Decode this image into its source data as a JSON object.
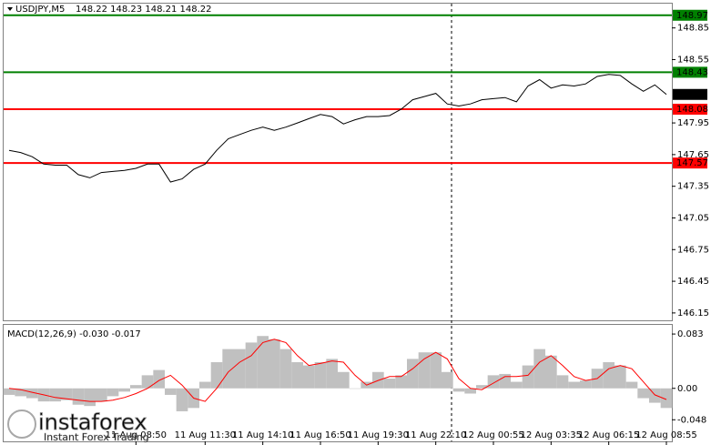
{
  "header": {
    "symbol": "USDJPY,M5",
    "quote": "148.22 148.23 148.21 148.22"
  },
  "chart_data": [
    {
      "type": "line",
      "color": "#000000",
      "categories": [
        null,
        null,
        null,
        null,
        null,
        null,
        null,
        null,
        null,
        null,
        null,
        "11 Aug 08:50",
        null,
        null,
        null,
        null,
        null,
        "11 Aug 11:30",
        null,
        null,
        null,
        null,
        "11 Aug 14:10",
        null,
        null,
        null,
        null,
        "11 Aug 16:50",
        null,
        null,
        null,
        null,
        "11 Aug 19:30",
        null,
        null,
        null,
        null,
        "11 Aug 22:10",
        null,
        null,
        null,
        null,
        "12 Aug 00:55",
        null,
        null,
        null,
        null,
        "12 Aug 03:35",
        null,
        null,
        null,
        null,
        "12 Aug 06:15",
        null,
        null,
        null,
        null,
        "12 Aug 08:55"
      ],
      "values": [
        147.69,
        147.67,
        147.63,
        147.56,
        147.55,
        147.55,
        147.46,
        147.43,
        147.48,
        147.49,
        147.5,
        147.52,
        147.56,
        147.56,
        147.39,
        147.42,
        147.51,
        147.56,
        147.69,
        147.8,
        147.84,
        147.88,
        147.91,
        147.88,
        147.91,
        147.95,
        147.99,
        148.03,
        148.01,
        147.94,
        147.98,
        148.01,
        148.01,
        148.02,
        148.08,
        148.17,
        148.2,
        148.23,
        148.13,
        148.11,
        148.13,
        148.17,
        148.18,
        148.19,
        148.15,
        148.3,
        148.36,
        148.28,
        148.31,
        148.3,
        148.32,
        148.39,
        148.41,
        148.4,
        148.32,
        148.25,
        148.31,
        148.22
      ],
      "ylim": [
        146.08,
        149.08
      ],
      "yticks": [
        148.85,
        148.55,
        147.95,
        147.65,
        147.35,
        147.05,
        146.75,
        146.45,
        146.15
      ],
      "levels": [
        {
          "value": 148.97,
          "color": "#008000"
        },
        {
          "value": 148.43,
          "color": "#008000"
        },
        {
          "value": 148.08,
          "color": "#ff0000"
        },
        {
          "value": 147.57,
          "color": "#ff0000"
        }
      ],
      "current_price": 148.22
    },
    {
      "type": "macd",
      "title": "MACD(12,26,9) -0.030 -0.017",
      "histogram": {
        "color": "#c0c0c0",
        "values": [
          -0.01,
          -0.012,
          -0.015,
          -0.02,
          -0.02,
          -0.018,
          -0.025,
          -0.027,
          -0.02,
          -0.012,
          -0.005,
          0.005,
          0.02,
          0.028,
          -0.01,
          -0.035,
          -0.03,
          0.01,
          0.04,
          0.06,
          0.06,
          0.07,
          0.08,
          0.075,
          0.06,
          0.04,
          0.035,
          0.04,
          0.045,
          0.025,
          0.0,
          0.01,
          0.025,
          0.015,
          0.02,
          0.045,
          0.055,
          0.055,
          0.025,
          -0.005,
          -0.008,
          0.005,
          0.02,
          0.022,
          0.01,
          0.035,
          0.06,
          0.05,
          0.02,
          0.01,
          0.012,
          0.03,
          0.04,
          0.035,
          0.01,
          -0.015,
          -0.022,
          -0.03
        ]
      },
      "signal": {
        "color": "#ff0000",
        "values": [
          0.0,
          -0.002,
          -0.006,
          -0.01,
          -0.014,
          -0.016,
          -0.018,
          -0.02,
          -0.02,
          -0.018,
          -0.014,
          -0.008,
          0.0,
          0.012,
          0.02,
          0.005,
          -0.015,
          -0.02,
          0.0,
          0.025,
          0.04,
          0.05,
          0.07,
          0.075,
          0.07,
          0.05,
          0.035,
          0.038,
          0.042,
          0.04,
          0.02,
          0.005,
          0.012,
          0.018,
          0.018,
          0.03,
          0.045,
          0.055,
          0.045,
          0.015,
          0.0,
          -0.002,
          0.008,
          0.018,
          0.018,
          0.02,
          0.04,
          0.05,
          0.035,
          0.018,
          0.012,
          0.015,
          0.03,
          0.035,
          0.03,
          0.01,
          -0.01,
          -0.017
        ]
      },
      "ylim": [
        -0.081,
        0.097
      ],
      "yticks": [
        0.083,
        {
          "value": 0,
          "label": "0.00"
        },
        -0.048
      ]
    }
  ],
  "logo": {
    "name": "instaforex",
    "tagline": "Instant Forex Trading"
  }
}
